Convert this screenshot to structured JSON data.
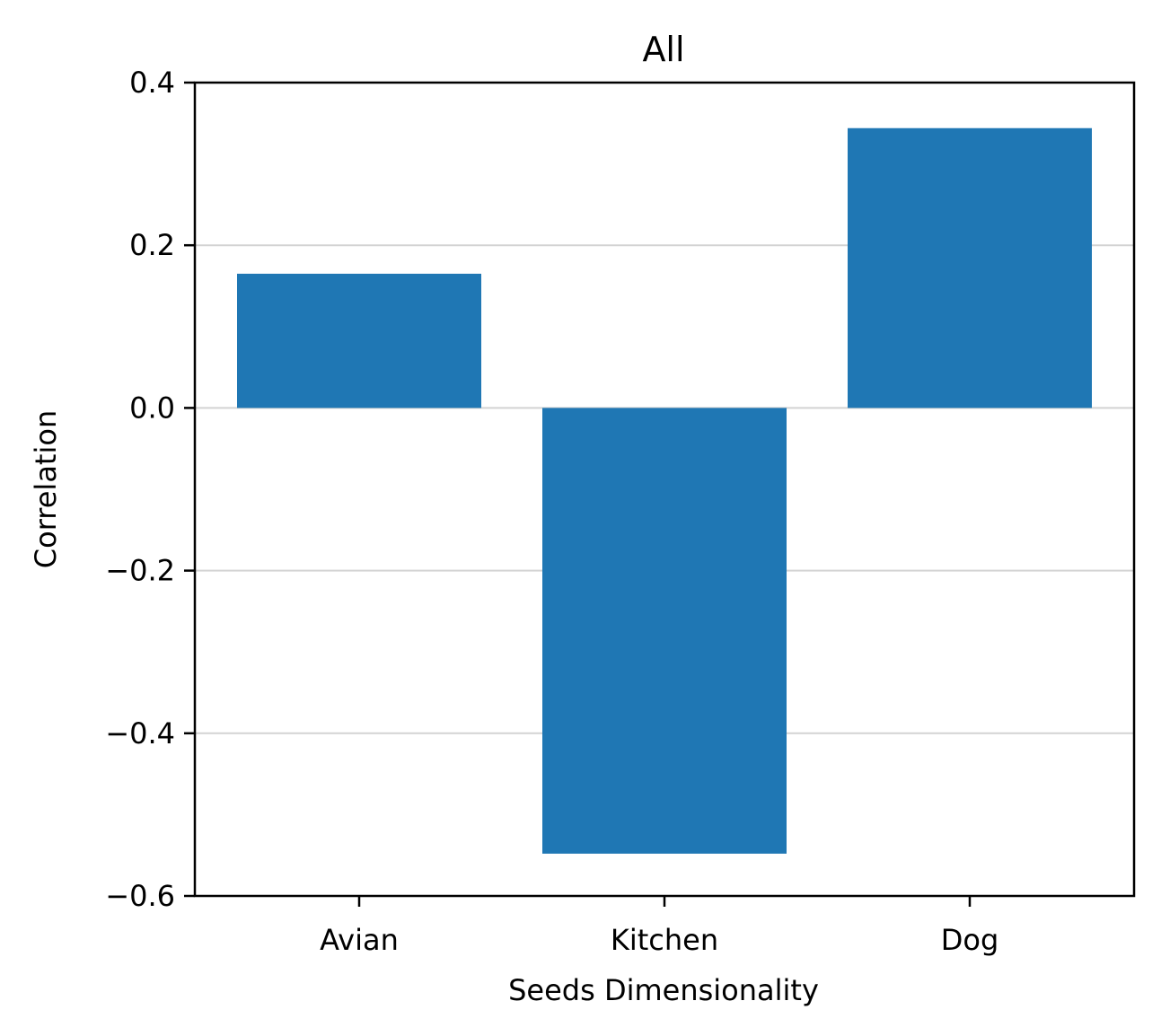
{
  "chart_data": {
    "type": "bar",
    "title": "All",
    "xlabel": "Seeds Dimensionality",
    "ylabel": "Correlation",
    "categories": [
      "Avian",
      "Kitchen",
      "Dog"
    ],
    "values": [
      0.165,
      -0.548,
      0.344
    ],
    "ylim": [
      -0.6,
      0.4
    ],
    "yticks": [
      "0.4",
      "0.2",
      "0.0",
      "−0.2",
      "−0.4",
      "−0.6"
    ],
    "ytick_values": [
      0.4,
      0.2,
      0.0,
      -0.2,
      -0.4,
      -0.6
    ],
    "grid": "horizontal",
    "legend": "none",
    "bar_color": "#1f77b4",
    "grid_color": "#d3d3d3"
  }
}
